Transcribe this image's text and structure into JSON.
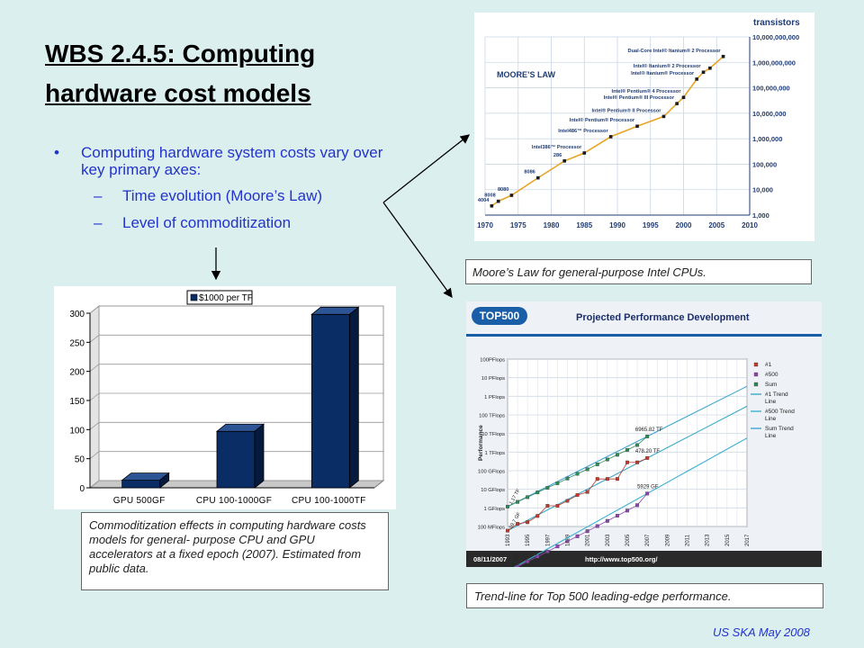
{
  "slide": {
    "title": "WBS 2.4.5: Computing hardware cost models",
    "bullet": "Computing hardware system costs vary over key primary axes:",
    "sub_bullets": [
      "Time evolution (Moore’s Law)",
      "Level of commoditization"
    ],
    "footer": "US SKA May 2008",
    "bullet_marker": "•",
    "dash_marker": "–"
  },
  "captions": {
    "moore": "Moore’s Law for general-purpose Intel CPUs.",
    "commod": "Commoditization effects in computing hardware costs models for general- purpose CPU and GPU accelerators at a fixed epoch (2007). Estimated from public data.",
    "top500": "Trend-line for Top 500 leading-edge performance."
  },
  "chart_data": [
    {
      "type": "bar",
      "categories": [
        "GPU 500GF",
        "CPU 100-1000GF",
        "CPU 100-1000TF"
      ],
      "series": [
        {
          "name": "$1000 per TF",
          "values": [
            13,
            97,
            298
          ]
        }
      ],
      "ylim": [
        0,
        300
      ],
      "yticks": [
        0,
        50,
        100,
        150,
        200,
        250,
        300
      ],
      "legend": "top",
      "grid": true,
      "bar_color": "#0b2d66"
    },
    {
      "type": "line",
      "title": "MOORE’S LAW",
      "ylabel": "transistors",
      "scale": "log",
      "xlim": [
        1970,
        2010
      ],
      "xticks": [
        1970,
        1975,
        1980,
        1985,
        1990,
        1995,
        2000,
        2005,
        2010
      ],
      "ylim": [
        1000,
        10000000000
      ],
      "yticks": [
        1000,
        10000,
        100000,
        1000000,
        10000000,
        100000000,
        1000000000,
        10000000000
      ],
      "ytick_labels": [
        "1,000",
        "10,000",
        "100,000",
        "1,000,000",
        "10,000,000",
        "100,000,000",
        "1,000,000,000",
        "10,000,000,000"
      ],
      "x": [
        1971,
        1972,
        1974,
        1978,
        1982,
        1985,
        1989,
        1993,
        1997,
        1999,
        2000,
        2002,
        2003,
        2004,
        2006
      ],
      "y": [
        2300,
        3500,
        6000,
        29000,
        134000,
        275000,
        1200000,
        3100000,
        7500000,
        24000000,
        42000000,
        220000000,
        410000000,
        592000000,
        1700000000
      ],
      "annotations": [
        {
          "label": "4004",
          "x": 1971
        },
        {
          "label": "8008",
          "x": 1972
        },
        {
          "label": "8080",
          "x": 1974
        },
        {
          "label": "8086",
          "x": 1978
        },
        {
          "label": "286",
          "x": 1982
        },
        {
          "label": "Intel386™ Processor",
          "x": 1985
        },
        {
          "label": "Intel486™ Processor",
          "x": 1989
        },
        {
          "label": "Intel® Pentium® Processor",
          "x": 1993
        },
        {
          "label": "Intel® Pentium® II Processor",
          "x": 1997
        },
        {
          "label": "Intel® Pentium® III Processor",
          "x": 1999
        },
        {
          "label": "Intel® Pentium® 4 Processor",
          "x": 2000
        },
        {
          "label": "Intel® Itanium® Processor",
          "x": 2002
        },
        {
          "label": "Intel® Itanium® 2 Processor",
          "x": 2003
        },
        {
          "label": "Dual-Core Intel® Itanium® 2 Processor",
          "x": 2006
        }
      ],
      "line_color": "#e8a526"
    },
    {
      "type": "line",
      "title": "Projected Performance Development",
      "ylabel": "Performance",
      "scale": "log",
      "header_logo": "TOP500",
      "footer_date": "08/11/2007",
      "footer_url": "http://www.top500.org/",
      "xticks": [
        1993,
        1995,
        1997,
        1999,
        2001,
        2003,
        2005,
        2007,
        2009,
        2011,
        2013,
        2015,
        2017
      ],
      "yticks": [
        "100 MFlops",
        "1 GFlops",
        "10 GFlops",
        "100 GFlops",
        "1 TFlops",
        "10 TFlops",
        "100 TFlops",
        "1 PFlops",
        "10 PFlops",
        "100PFlops"
      ],
      "legend": [
        "#1",
        "#500",
        "Sum",
        "#1 Trend Line",
        "#500 Trend Line",
        "Sum Trend Line"
      ],
      "annotations": [
        "6965.82 TF",
        "478.20 TF",
        "5929 GF",
        "59.7 GF",
        "0.4 GF",
        "1.17 TF"
      ],
      "series": [
        {
          "name": "Sum",
          "x": [
            1993,
            1994,
            1995,
            1996,
            1997,
            1998,
            1999,
            2000,
            2001,
            2002,
            2003,
            2004,
            2005,
            2006,
            2007
          ],
          "y": [
            0.00117,
            0.0021,
            0.0038,
            0.0068,
            0.012,
            0.021,
            0.038,
            0.068,
            0.12,
            0.22,
            0.4,
            0.72,
            1.3,
            2.4,
            6.96582
          ]
        },
        {
          "name": "#1",
          "x": [
            1993,
            1994,
            1995,
            1996,
            1997,
            1998,
            1999,
            2000,
            2001,
            2002,
            2003,
            2004,
            2005,
            2006,
            2007
          ],
          "y": [
            5.97e-05,
            0.00014,
            0.00017,
            0.00037,
            0.0013,
            0.0013,
            0.0024,
            0.0049,
            0.0072,
            0.036,
            0.036,
            0.036,
            0.28,
            0.28,
            0.4782
          ]
        },
        {
          "name": "#500",
          "x": [
            1993,
            1994,
            1995,
            1996,
            1997,
            1998,
            1999,
            2000,
            2001,
            2002,
            2003,
            2004,
            2005,
            2006,
            2007
          ],
          "y": [
            4e-07,
            7e-07,
            1.3e-06,
            2.4e-06,
            4.5e-06,
            8.5e-06,
            1.6e-05,
            3e-05,
            5.6e-05,
            0.000105,
            0.0002,
            0.00038,
            0.00072,
            0.0014,
            0.005929
          ]
        }
      ]
    }
  ]
}
